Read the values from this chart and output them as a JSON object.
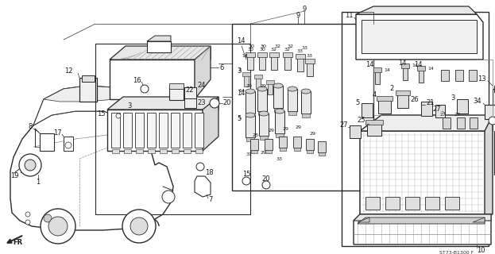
{
  "bg_color": "#ffffff",
  "line_color": "#2a2a2a",
  "text_color": "#1a1a1a",
  "fig_width": 6.23,
  "fig_height": 3.2,
  "dpi": 100,
  "diagram_code": "ST73-B1300 F",
  "fr_label": "FR"
}
